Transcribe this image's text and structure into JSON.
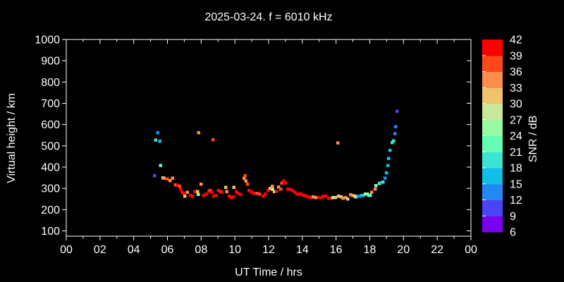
{
  "chart_data": {
    "type": "scatter",
    "title": "2025-03-24. f = 6010 kHz",
    "xlabel": "UT Time / hrs",
    "ylabel": "Virtual height / km",
    "colorbar_label": "SNR / dB",
    "background": "#000000",
    "foreground": "#ffffff",
    "grid": false,
    "x_range_hours": [
      0,
      24
    ],
    "y_range_km": [
      100,
      1000
    ],
    "x_tick_values": [
      0,
      2,
      4,
      6,
      8,
      10,
      12,
      14,
      16,
      18,
      20,
      22,
      24
    ],
    "x_tick_labels": [
      "00",
      "02",
      "04",
      "06",
      "08",
      "10",
      "12",
      "14",
      "16",
      "18",
      "20",
      "22",
      "00"
    ],
    "x_minor_tick_values": [
      1,
      3,
      5,
      7,
      9,
      11,
      13,
      15,
      17,
      19,
      21,
      23
    ],
    "y_tick_values": [
      100,
      200,
      300,
      400,
      500,
      600,
      700,
      800,
      900,
      1000
    ],
    "colorbar": {
      "min": 6,
      "max": 42,
      "tick_values": [
        6,
        9,
        12,
        15,
        18,
        21,
        24,
        27,
        30,
        33,
        36,
        39,
        42
      ],
      "colors_low_to_high": [
        "#7A00F0",
        "#4A45F2",
        "#2389F0",
        "#10BFE8",
        "#3AE4D3",
        "#64FDB4",
        "#98FBA4",
        "#C9E89B",
        "#EFC36A",
        "#FC8D4C",
        "#FF4719",
        "#FF0000"
      ]
    },
    "points_t_h_snr": [
      [
        5.23,
        360,
        10
      ],
      [
        5.31,
        526,
        19
      ],
      [
        5.43,
        562,
        13
      ],
      [
        5.56,
        522,
        16
      ],
      [
        5.6,
        407,
        22
      ],
      [
        5.73,
        350,
        28
      ],
      [
        5.81,
        347,
        34
      ],
      [
        5.98,
        344,
        37
      ],
      [
        6.15,
        337,
        34
      ],
      [
        6.31,
        347,
        34
      ],
      [
        6.48,
        317,
        37
      ],
      [
        6.61,
        314,
        41
      ],
      [
        6.73,
        310,
        37
      ],
      [
        6.78,
        297,
        41
      ],
      [
        6.86,
        281,
        41
      ],
      [
        6.98,
        277,
        41
      ],
      [
        7.03,
        264,
        31
      ],
      [
        7.19,
        281,
        34
      ],
      [
        7.36,
        267,
        41
      ],
      [
        7.49,
        264,
        41
      ],
      [
        7.61,
        284,
        41
      ],
      [
        7.78,
        284,
        31
      ],
      [
        7.82,
        271,
        25
      ],
      [
        7.86,
        562,
        34
      ],
      [
        7.99,
        320,
        34
      ],
      [
        8.15,
        267,
        41
      ],
      [
        8.32,
        274,
        41
      ],
      [
        8.45,
        287,
        41
      ],
      [
        8.53,
        290,
        37
      ],
      [
        8.62,
        281,
        41
      ],
      [
        8.7,
        529,
        37
      ],
      [
        8.74,
        264,
        41
      ],
      [
        8.87,
        267,
        41
      ],
      [
        9.03,
        290,
        41
      ],
      [
        9.16,
        284,
        37
      ],
      [
        9.24,
        281,
        41
      ],
      [
        9.45,
        304,
        31
      ],
      [
        9.53,
        284,
        34
      ],
      [
        9.66,
        264,
        41
      ],
      [
        9.79,
        257,
        41
      ],
      [
        9.91,
        260,
        41
      ],
      [
        9.95,
        304,
        31
      ],
      [
        10.08,
        284,
        41
      ],
      [
        10.2,
        277,
        41
      ],
      [
        10.33,
        271,
        41
      ],
      [
        10.54,
        347,
        34
      ],
      [
        10.62,
        360,
        37
      ],
      [
        10.66,
        334,
        34
      ],
      [
        10.75,
        320,
        37
      ],
      [
        10.83,
        290,
        41
      ],
      [
        11.0,
        281,
        41
      ],
      [
        11.13,
        277,
        41
      ],
      [
        11.33,
        277,
        37
      ],
      [
        11.46,
        274,
        37
      ],
      [
        11.67,
        264,
        41
      ],
      [
        11.8,
        274,
        41
      ],
      [
        11.96,
        290,
        41
      ],
      [
        12.09,
        300,
        31
      ],
      [
        12.21,
        310,
        34
      ],
      [
        12.25,
        294,
        28
      ],
      [
        12.34,
        284,
        31
      ],
      [
        12.46,
        287,
        41
      ],
      [
        12.59,
        307,
        34
      ],
      [
        12.72,
        297,
        37
      ],
      [
        12.78,
        324,
        37
      ],
      [
        12.88,
        334,
        41
      ],
      [
        13.01,
        324,
        41
      ],
      [
        13.13,
        297,
        41
      ],
      [
        13.26,
        294,
        41
      ],
      [
        13.43,
        290,
        41
      ],
      [
        13.56,
        281,
        41
      ],
      [
        13.68,
        274,
        41
      ],
      [
        13.8,
        274,
        41
      ],
      [
        13.93,
        274,
        41
      ],
      [
        14.09,
        267,
        41
      ],
      [
        14.22,
        264,
        41
      ],
      [
        14.39,
        260,
        41
      ],
      [
        14.51,
        257,
        41
      ],
      [
        14.64,
        260,
        34
      ],
      [
        14.8,
        257,
        34
      ],
      [
        14.97,
        257,
        41
      ],
      [
        15.14,
        257,
        41
      ],
      [
        15.26,
        264,
        41
      ],
      [
        15.39,
        264,
        41
      ],
      [
        15.56,
        254,
        41
      ],
      [
        15.68,
        254,
        41
      ],
      [
        15.81,
        257,
        25
      ],
      [
        15.97,
        257,
        31
      ],
      [
        16.1,
        513,
        34
      ],
      [
        16.14,
        264,
        31
      ],
      [
        16.31,
        260,
        31
      ],
      [
        16.43,
        254,
        34
      ],
      [
        16.56,
        257,
        34
      ],
      [
        16.69,
        250,
        31
      ],
      [
        16.86,
        270,
        34
      ],
      [
        16.98,
        267,
        34
      ],
      [
        17.11,
        264,
        28
      ],
      [
        17.19,
        260,
        25
      ],
      [
        17.32,
        264,
        13
      ],
      [
        17.4,
        264,
        13
      ],
      [
        17.53,
        267,
        16
      ],
      [
        17.61,
        267,
        16
      ],
      [
        17.74,
        274,
        25
      ],
      [
        17.86,
        274,
        25
      ],
      [
        17.95,
        267,
        22
      ],
      [
        18.03,
        267,
        22
      ],
      [
        18.11,
        281,
        34
      ],
      [
        18.32,
        297,
        34
      ],
      [
        18.36,
        313,
        25
      ],
      [
        18.57,
        323,
        22
      ],
      [
        18.66,
        327,
        16
      ],
      [
        18.78,
        330,
        19
      ],
      [
        18.91,
        347,
        13
      ],
      [
        18.99,
        373,
        16
      ],
      [
        19.07,
        407,
        16
      ],
      [
        19.11,
        440,
        16
      ],
      [
        19.2,
        479,
        16
      ],
      [
        19.32,
        516,
        19
      ],
      [
        19.41,
        523,
        19
      ],
      [
        19.49,
        556,
        13
      ],
      [
        19.53,
        589,
        13
      ],
      [
        19.62,
        662,
        10
      ]
    ]
  }
}
